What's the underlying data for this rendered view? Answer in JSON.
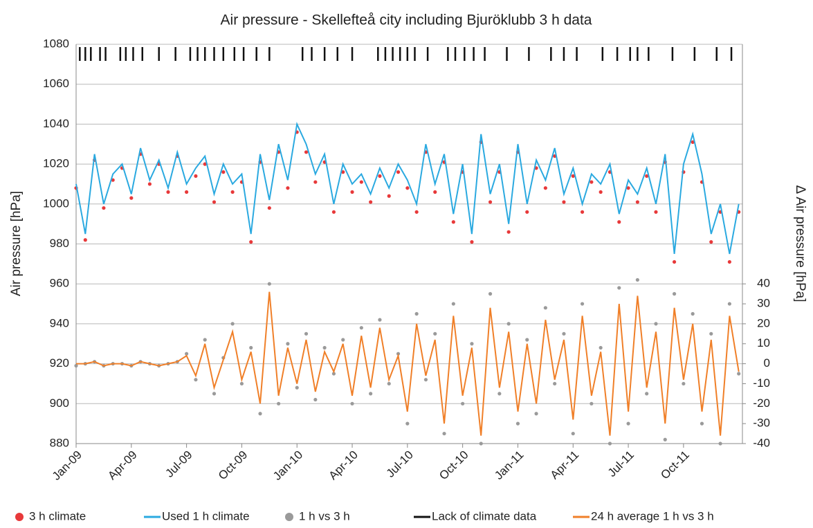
{
  "chart_data": {
    "type": "line",
    "title": "Air pressure - Skellefteå city including Bjuröklubb 3 h data",
    "ylabel": "Air pressure [hPa]",
    "y2label": "Δ Air pressure [hPa]",
    "xlim": [
      0,
      36.2
    ],
    "xticks": [
      {
        "value": 0,
        "label": "Jan-09"
      },
      {
        "value": 3,
        "label": "Apr-09"
      },
      {
        "value": 6,
        "label": "Jul-09"
      },
      {
        "value": 9,
        "label": "Oct-09"
      },
      {
        "value": 12,
        "label": "Jan-10"
      },
      {
        "value": 15,
        "label": "Apr-10"
      },
      {
        "value": 18,
        "label": "Jul-10"
      },
      {
        "value": 21,
        "label": "Oct-10"
      },
      {
        "value": 24,
        "label": "Jan-11"
      },
      {
        "value": 27,
        "label": "Apr-11"
      },
      {
        "value": 30,
        "label": "Jul-11"
      },
      {
        "value": 33,
        "label": "Oct-11"
      }
    ],
    "ylim": [
      880,
      1080
    ],
    "yticks": [
      880,
      900,
      920,
      940,
      960,
      980,
      1000,
      1020,
      1040,
      1060,
      1080
    ],
    "y2lim": [
      -40,
      160
    ],
    "y2ticks": [
      -40,
      -30,
      -20,
      -10,
      0,
      10,
      20,
      30,
      40
    ],
    "grid": true,
    "x": [
      0,
      0.5,
      1,
      1.5,
      2,
      2.5,
      3,
      3.5,
      4,
      4.5,
      5,
      5.5,
      6,
      6.5,
      7,
      7.5,
      8,
      8.5,
      9,
      9.5,
      10,
      10.5,
      11,
      11.5,
      12,
      12.5,
      13,
      13.5,
      14,
      14.5,
      15,
      15.5,
      16,
      16.5,
      17,
      17.5,
      18,
      18.5,
      19,
      19.5,
      20,
      20.5,
      21,
      21.5,
      22,
      22.5,
      23,
      23.5,
      24,
      24.5,
      25,
      25.5,
      26,
      26.5,
      27,
      27.5,
      28,
      28.5,
      29,
      29.5,
      30,
      30.5,
      31,
      31.5,
      32,
      32.5,
      33,
      33.5,
      34,
      34.5,
      35,
      35.5,
      36
    ],
    "series": [
      {
        "name": "3 h climate",
        "color": "#e8393a",
        "style": "dots",
        "values": [
          1008,
          982,
          1022,
          998,
          1012,
          1018,
          1003,
          1025,
          1010,
          1020,
          1006,
          1024,
          1006,
          1014,
          1020,
          1001,
          1016,
          1006,
          1011,
          981,
          1021,
          998,
          1026,
          1008,
          1036,
          1026,
          1011,
          1021,
          996,
          1016,
          1006,
          1011,
          1001,
          1014,
          1004,
          1016,
          1008,
          996,
          1026,
          1006,
          1021,
          991,
          1016,
          981,
          1031,
          1001,
          1016,
          986,
          1026,
          996,
          1018,
          1008,
          1024,
          1001,
          1014,
          996,
          1011,
          1006,
          1016,
          991,
          1008,
          1001,
          1014,
          996,
          1021,
          971,
          1016,
          1031,
          1011,
          981,
          996,
          971,
          996
        ]
      },
      {
        "name": "Used 1 h climate",
        "color": "#2aa9e0",
        "style": "line",
        "values": [
          1010,
          985,
          1025,
          1000,
          1015,
          1020,
          1005,
          1028,
          1012,
          1022,
          1008,
          1026,
          1010,
          1018,
          1024,
          1005,
          1020,
          1010,
          1015,
          985,
          1025,
          1002,
          1030,
          1012,
          1040,
          1030,
          1015,
          1025,
          1000,
          1020,
          1010,
          1015,
          1005,
          1018,
          1008,
          1020,
          1012,
          1000,
          1030,
          1010,
          1025,
          995,
          1020,
          985,
          1035,
          1005,
          1020,
          990,
          1030,
          1000,
          1022,
          1012,
          1028,
          1005,
          1018,
          1000,
          1015,
          1010,
          1020,
          995,
          1012,
          1005,
          1018,
          1000,
          1025,
          975,
          1020,
          1035,
          1015,
          985,
          1000,
          975,
          1000
        ]
      },
      {
        "name": "1 h vs 3 h",
        "color": "#9a9a9a",
        "style": "dots",
        "axis": "y2",
        "values": [
          -1,
          0,
          1,
          -1,
          0,
          0,
          -1,
          1,
          0,
          -1,
          0,
          1,
          5,
          -8,
          12,
          -15,
          3,
          20,
          -10,
          8,
          -25,
          40,
          -20,
          10,
          -12,
          15,
          -18,
          8,
          -5,
          12,
          -20,
          18,
          -15,
          22,
          -10,
          5,
          -30,
          25,
          -8,
          15,
          -35,
          30,
          -20,
          10,
          -40,
          35,
          -15,
          20,
          -30,
          12,
          -25,
          28,
          -10,
          15,
          -35,
          30,
          -20,
          8,
          -40,
          38,
          -30,
          42,
          -15,
          20,
          -38,
          35,
          -10,
          25,
          -30,
          15,
          -40,
          30,
          -5
        ]
      },
      {
        "name": "Lack of climate data",
        "color": "#111111",
        "style": "ticks",
        "x": [
          0.2,
          0.5,
          0.8,
          1.3,
          1.6,
          2.4,
          2.7,
          3.1,
          3.6,
          4.5,
          5.4,
          6.2,
          6.6,
          7.0,
          7.5,
          8.0,
          8.6,
          9.1,
          9.8,
          10.5,
          12.3,
          12.8,
          13.5,
          14.2,
          15.0,
          16.4,
          16.8,
          17.2,
          17.6,
          18.0,
          18.4,
          19.1,
          20.2,
          20.6,
          21.1,
          21.6,
          22.2,
          23.4,
          24.6,
          25.8,
          26.5,
          27.2,
          28.6,
          29.4,
          30.1,
          30.5,
          31.1,
          32.4,
          33.6,
          34.8,
          35.6
        ]
      },
      {
        "name": "24 h average 1 h vs 3 h",
        "color": "#f07f28",
        "style": "line",
        "axis": "y2",
        "values": [
          0,
          0,
          1,
          -1,
          0,
          0,
          -1,
          1,
          0,
          -1,
          0,
          1,
          4,
          -6,
          10,
          -12,
          2,
          16,
          -8,
          6,
          -20,
          36,
          -16,
          8,
          -10,
          12,
          -14,
          6,
          -4,
          10,
          -16,
          14,
          -12,
          18,
          -8,
          4,
          -24,
          20,
          -6,
          12,
          -30,
          24,
          -16,
          8,
          -36,
          28,
          -12,
          16,
          -24,
          10,
          -20,
          22,
          -8,
          12,
          -28,
          24,
          -16,
          6,
          -36,
          30,
          -24,
          34,
          -12,
          16,
          -30,
          28,
          -8,
          20,
          -24,
          12,
          -36,
          24,
          -4
        ]
      }
    ]
  }
}
